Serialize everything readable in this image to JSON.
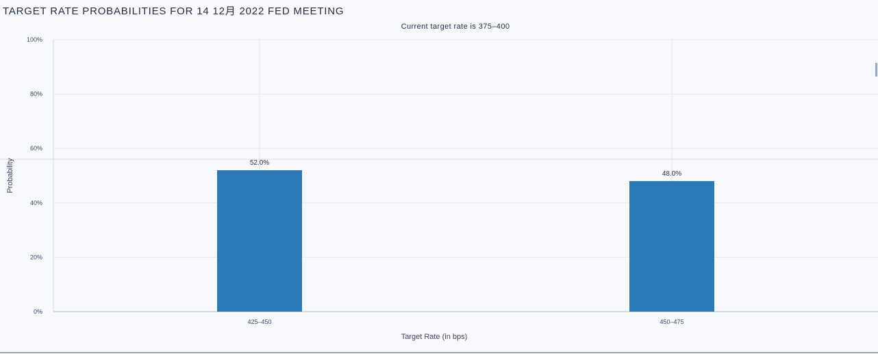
{
  "page": {
    "title": "TARGET RATE PROBABILITIES FOR 14 12月 2022 FED MEETING",
    "subtitle": "Current target rate is 375–400"
  },
  "chart_data": {
    "type": "bar",
    "title": "TARGET RATE PROBABILITIES FOR 14 12月 2022 FED MEETING",
    "subtitle": "Current target rate is 375–400",
    "categories": [
      "425–450",
      "450–475"
    ],
    "values": [
      52.0,
      48.0
    ],
    "data_labels": [
      "52.0%",
      "48.0%"
    ],
    "xlabel": "Target Rate (in bps)",
    "ylabel": "Probability",
    "ylim": [
      0,
      100
    ],
    "yticks": [
      0,
      20,
      40,
      60,
      80,
      100
    ],
    "ytick_labels": [
      "0%",
      "20%",
      "40%",
      "60%",
      "80%",
      "100%"
    ],
    "bar_color": "#2a7ab8",
    "grid": true,
    "legend": "none"
  }
}
